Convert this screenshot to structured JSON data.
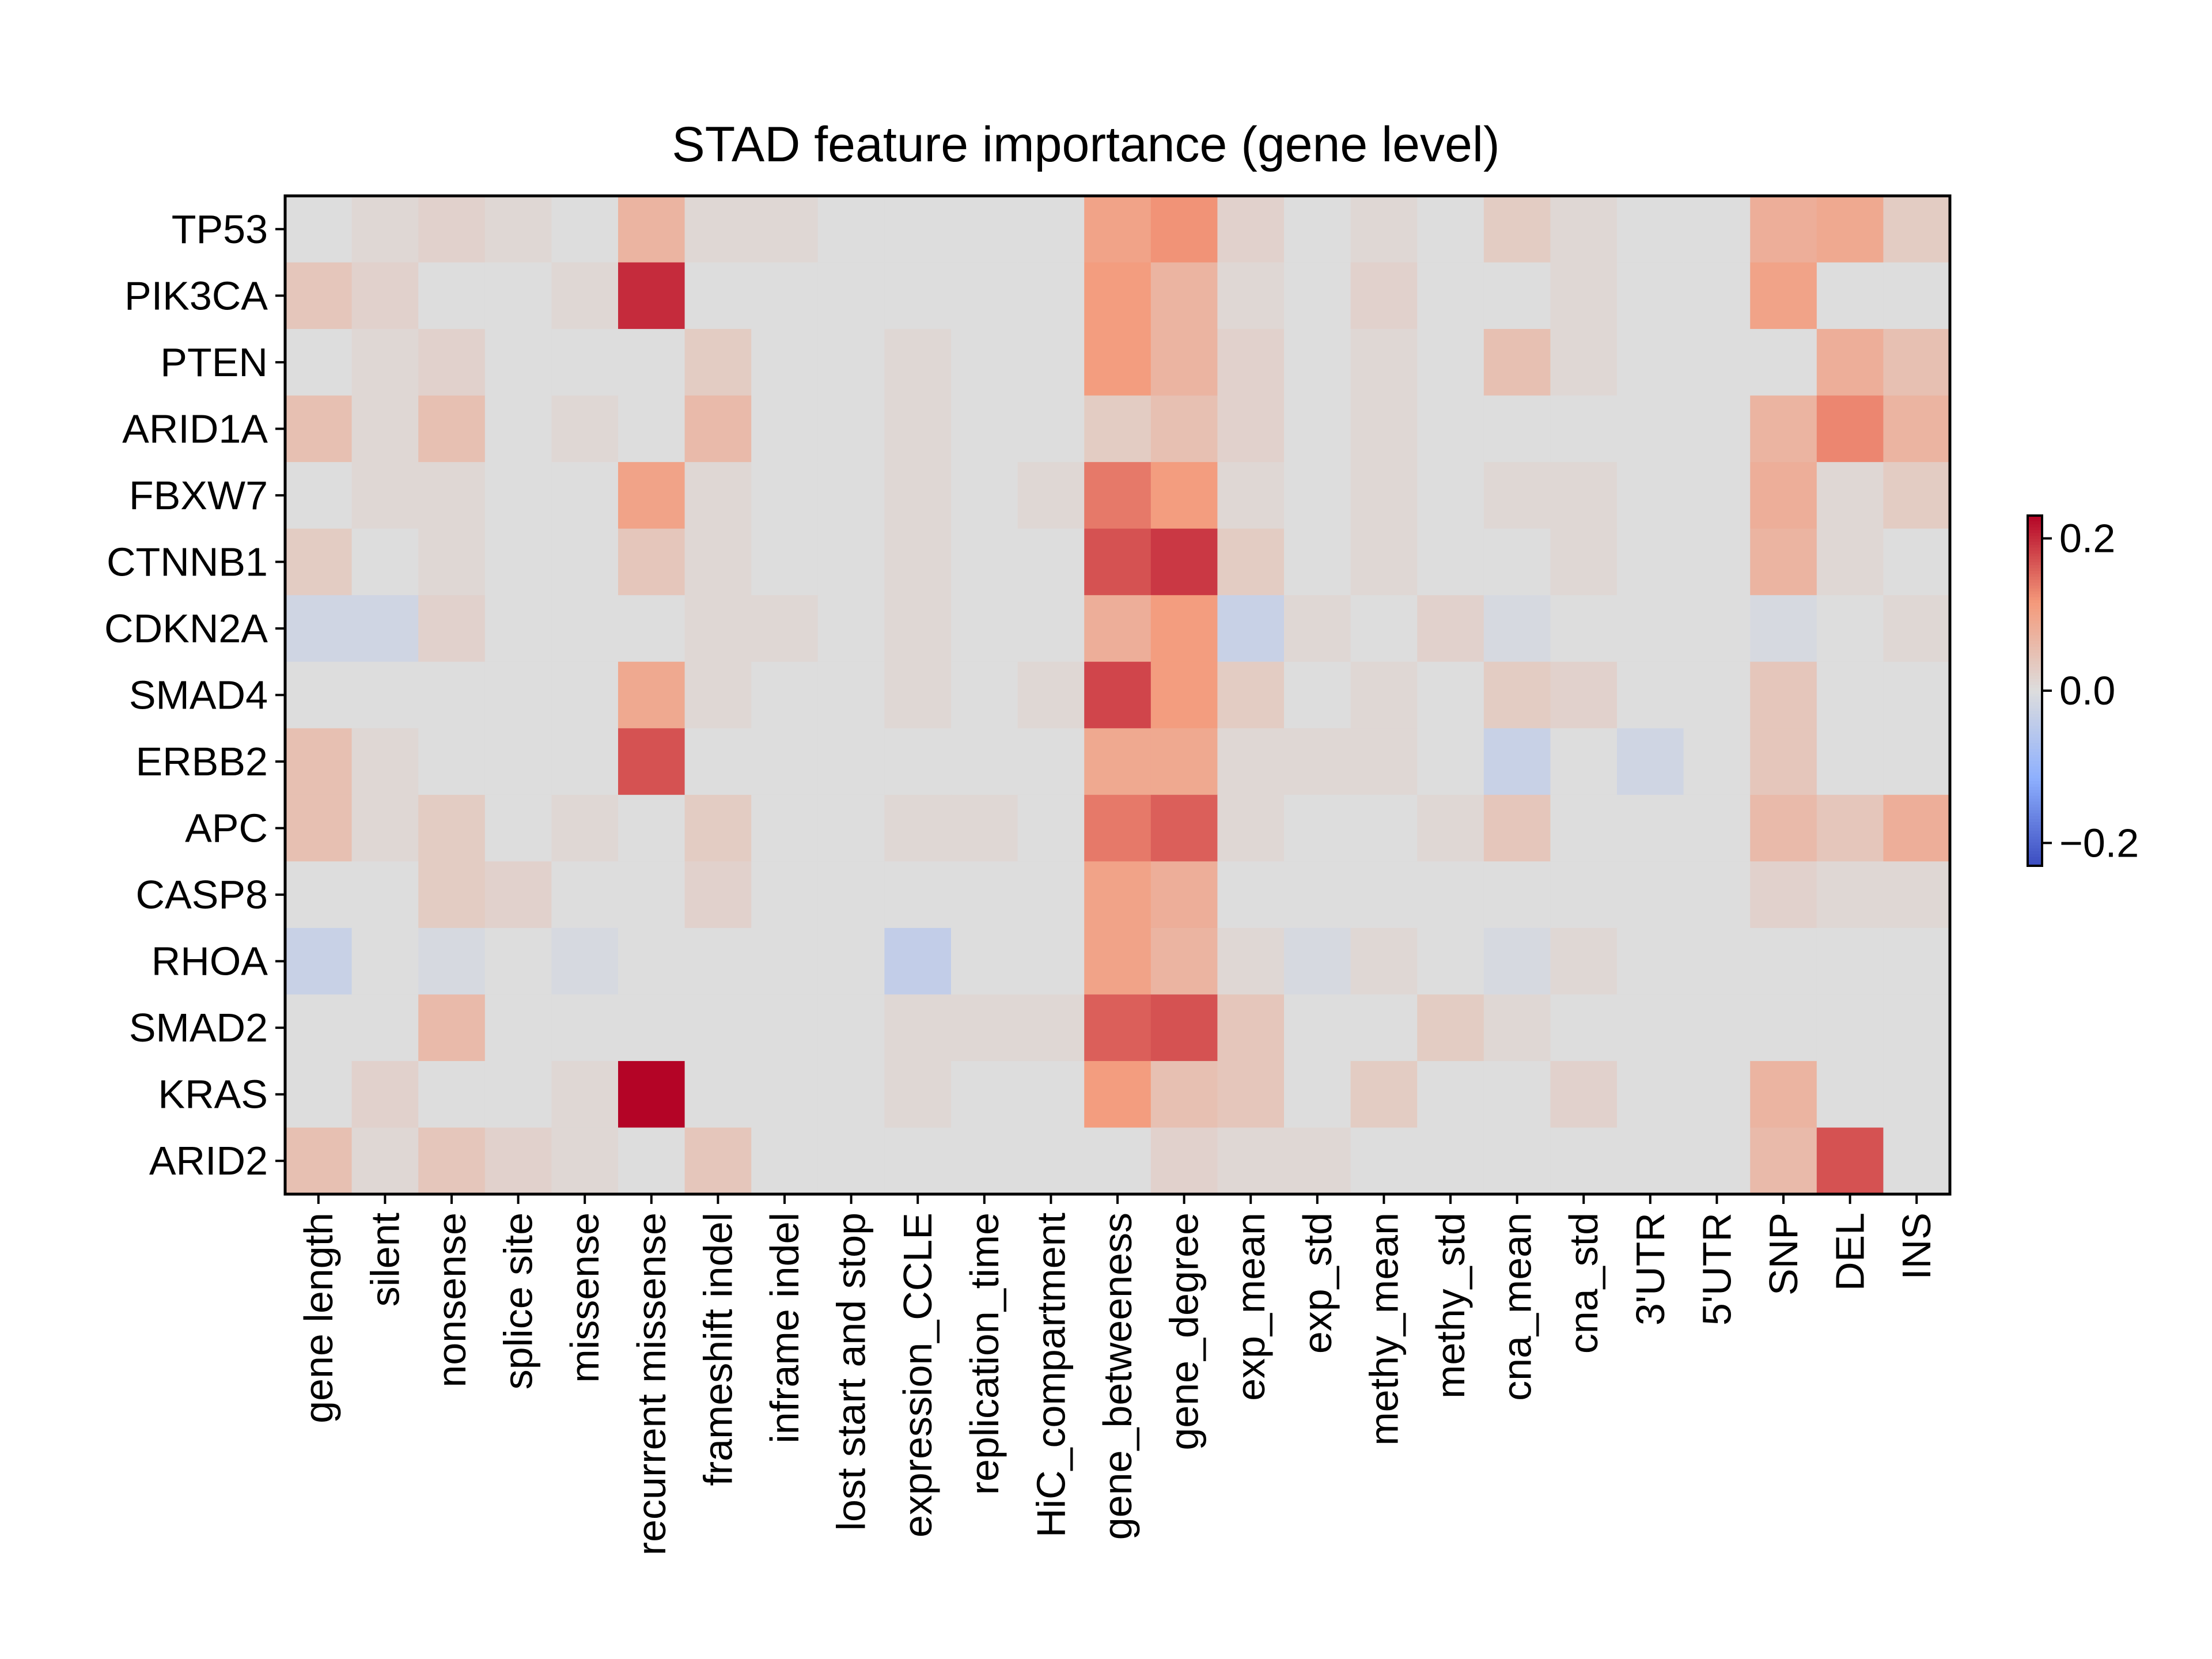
{
  "chart_data": {
    "type": "heatmap",
    "title": "STAD feature importance (gene level)",
    "rows": [
      "TP53",
      "PIK3CA",
      "PTEN",
      "ARID1A",
      "FBXW7",
      "CTNNB1",
      "CDKN2A",
      "SMAD4",
      "ERBB2",
      "APC",
      "CASP8",
      "RHOA",
      "SMAD2",
      "KRAS",
      "ARID2"
    ],
    "columns": [
      "gene length",
      "silent",
      "nonsense",
      "splice site",
      "missense",
      "recurrent missense",
      "frameshift indel",
      "inframe indel",
      "lost start and stop",
      "expression_CCLE",
      "replication_time",
      "HiC_compartment",
      "gene_betweeness",
      "gene_degree",
      "exp_mean",
      "exp_std",
      "methy_mean",
      "methy_std",
      "cna_mean",
      "cna_std",
      "3'UTR",
      "5'UTR",
      "SNP",
      "DEL",
      "INS"
    ],
    "values": [
      [
        0.0,
        0.01,
        0.02,
        0.01,
        0.0,
        0.07,
        0.01,
        0.01,
        0.0,
        0.0,
        0.0,
        0.0,
        0.1,
        0.12,
        0.02,
        0.0,
        0.01,
        0.0,
        0.03,
        0.01,
        0.0,
        0.0,
        0.08,
        0.09,
        0.03
      ],
      [
        0.04,
        0.02,
        0.0,
        0.0,
        0.01,
        0.2,
        0.0,
        0.0,
        0.0,
        0.0,
        0.0,
        0.0,
        0.11,
        0.07,
        0.01,
        0.0,
        0.02,
        0.0,
        0.0,
        0.01,
        0.0,
        0.0,
        0.1,
        0.0,
        0.0
      ],
      [
        0.0,
        0.01,
        0.02,
        0.0,
        0.0,
        0.0,
        0.03,
        0.0,
        0.0,
        0.01,
        0.0,
        0.0,
        0.11,
        0.07,
        0.02,
        0.0,
        0.01,
        0.0,
        0.05,
        0.01,
        0.0,
        0.0,
        0.0,
        0.08,
        0.05
      ],
      [
        0.05,
        0.01,
        0.05,
        0.0,
        0.01,
        0.0,
        0.06,
        0.0,
        0.0,
        0.01,
        0.0,
        0.0,
        0.03,
        0.05,
        0.02,
        0.0,
        0.01,
        0.0,
        0.0,
        0.0,
        0.0,
        0.0,
        0.07,
        0.13,
        0.07
      ],
      [
        0.0,
        0.01,
        0.01,
        0.0,
        0.0,
        0.1,
        0.01,
        0.0,
        0.0,
        0.01,
        0.0,
        0.01,
        0.14,
        0.11,
        0.01,
        0.0,
        0.01,
        0.0,
        0.01,
        0.01,
        0.0,
        0.0,
        0.08,
        0.01,
        0.03
      ],
      [
        0.03,
        0.0,
        0.01,
        0.0,
        0.0,
        0.04,
        0.01,
        0.0,
        0.0,
        0.01,
        0.0,
        0.0,
        0.17,
        0.19,
        0.03,
        0.0,
        0.01,
        0.0,
        0.0,
        0.01,
        0.0,
        0.0,
        0.07,
        0.01,
        0.0
      ],
      [
        -0.02,
        -0.02,
        0.02,
        0.0,
        0.0,
        0.0,
        0.01,
        0.01,
        0.0,
        0.01,
        0.0,
        0.0,
        0.08,
        0.11,
        -0.03,
        0.01,
        0.0,
        0.02,
        -0.01,
        0.0,
        0.0,
        0.0,
        -0.01,
        0.0,
        0.01
      ],
      [
        0.0,
        0.0,
        0.0,
        0.0,
        0.0,
        0.09,
        0.01,
        0.0,
        0.0,
        0.01,
        0.0,
        0.01,
        0.18,
        0.11,
        0.03,
        0.0,
        0.01,
        0.0,
        0.03,
        0.02,
        0.0,
        0.0,
        0.04,
        0.0,
        0.0
      ],
      [
        0.05,
        0.01,
        0.0,
        0.0,
        0.0,
        0.17,
        0.0,
        0.0,
        0.0,
        0.0,
        0.0,
        0.0,
        0.09,
        0.09,
        0.01,
        0.01,
        0.01,
        0.0,
        -0.03,
        0.0,
        -0.02,
        0.0,
        0.04,
        0.0,
        0.0
      ],
      [
        0.05,
        0.01,
        0.03,
        0.0,
        0.01,
        0.0,
        0.03,
        0.0,
        0.0,
        0.01,
        0.01,
        0.0,
        0.14,
        0.16,
        0.01,
        0.0,
        0.0,
        0.01,
        0.04,
        0.0,
        0.0,
        0.0,
        0.06,
        0.04,
        0.08
      ],
      [
        0.0,
        0.0,
        0.03,
        0.02,
        0.0,
        0.0,
        0.02,
        0.0,
        0.0,
        0.0,
        0.0,
        0.0,
        0.1,
        0.08,
        0.0,
        0.0,
        0.0,
        0.0,
        0.0,
        0.0,
        0.0,
        0.0,
        0.02,
        0.01,
        0.01
      ],
      [
        -0.03,
        0.0,
        -0.01,
        0.0,
        -0.01,
        0.0,
        0.0,
        0.0,
        0.0,
        -0.04,
        0.0,
        0.0,
        0.1,
        0.07,
        0.01,
        -0.01,
        0.01,
        0.0,
        -0.01,
        0.01,
        0.0,
        0.0,
        0.0,
        0.0,
        0.0
      ],
      [
        0.0,
        0.0,
        0.06,
        0.0,
        0.0,
        0.0,
        0.0,
        0.0,
        0.0,
        0.01,
        0.01,
        0.01,
        0.16,
        0.17,
        0.04,
        0.0,
        0.0,
        0.03,
        0.01,
        0.0,
        0.0,
        0.0,
        0.0,
        0.0,
        0.0
      ],
      [
        0.0,
        0.02,
        0.0,
        0.0,
        0.01,
        0.24,
        0.0,
        0.0,
        0.0,
        0.01,
        0.0,
        0.0,
        0.11,
        0.05,
        0.04,
        0.0,
        0.03,
        0.0,
        0.0,
        0.02,
        0.0,
        0.0,
        0.07,
        0.0,
        0.0
      ],
      [
        0.05,
        0.01,
        0.04,
        0.02,
        0.01,
        0.0,
        0.04,
        0.0,
        0.0,
        0.0,
        0.0,
        0.0,
        0.0,
        0.02,
        0.01,
        0.01,
        0.0,
        0.0,
        0.0,
        0.0,
        0.0,
        0.0,
        0.06,
        0.17,
        0.0
      ]
    ],
    "colormap": "coolwarm",
    "vmin": -0.23,
    "vmax": 0.23,
    "colorbar": {
      "ticks": [
        0.2,
        0.0,
        -0.2
      ],
      "tick_labels": [
        "0.2",
        "0.0",
        "−0.2"
      ]
    }
  }
}
